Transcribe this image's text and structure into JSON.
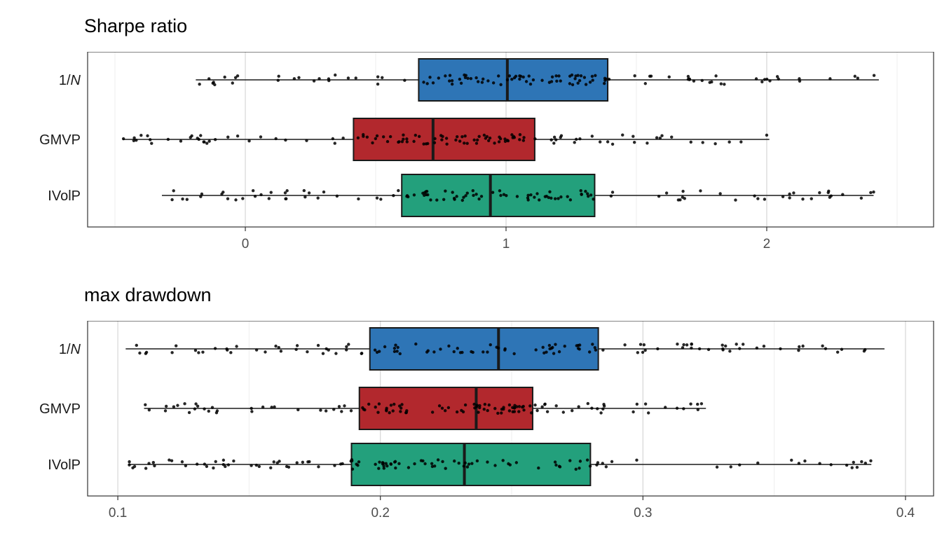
{
  "figure": {
    "background": "#ffffff"
  },
  "style": {
    "box_border": "#1a1a1a",
    "whisker_color": "#1a1a1a",
    "point_color": "#000000",
    "grid_major": "#d9d9d9",
    "grid_minor": "#eeeeee",
    "panel_border": "#333333",
    "axis_text_color": "#4d4d4d",
    "category_text_color": "#1a1a1a",
    "title_color": "#000000"
  },
  "chart_data": [
    {
      "type": "boxplot-horizontal",
      "title": "Sharpe ratio",
      "categories": [
        {
          "plain": "1/",
          "italic": "N"
        },
        {
          "plain": "GMVP",
          "italic": ""
        },
        {
          "plain": "IVolP",
          "italic": ""
        }
      ],
      "xlim": [
        -0.605,
        2.64
      ],
      "x_major_ticks": [
        {
          "value": 0,
          "label": "0"
        },
        {
          "value": 1,
          "label": "1"
        },
        {
          "value": 2,
          "label": "2"
        }
      ],
      "x_minor_ticks": [
        -0.5,
        0.5,
        1.5,
        2.5
      ],
      "grid": true,
      "legend": "none",
      "series": [
        {
          "name": "1/N",
          "color": "#2E75B6",
          "min": -0.19,
          "q1": 0.665,
          "median": 1.005,
          "q3": 1.39,
          "max": 2.43,
          "n_points": 120,
          "seed": 11
        },
        {
          "name": "GMVP",
          "color": "#B2282D",
          "min": -0.47,
          "q1": 0.415,
          "median": 0.72,
          "q3": 1.11,
          "max": 2.01,
          "n_points": 120,
          "seed": 22
        },
        {
          "name": "IVolP",
          "color": "#23A07C",
          "min": -0.32,
          "q1": 0.6,
          "median": 0.94,
          "q3": 1.34,
          "max": 2.41,
          "n_points": 120,
          "seed": 33
        }
      ]
    },
    {
      "type": "boxplot-horizontal",
      "title": "max drawdown",
      "categories": [
        {
          "plain": "1/",
          "italic": "N"
        },
        {
          "plain": "GMVP",
          "italic": ""
        },
        {
          "plain": "IVolP",
          "italic": ""
        }
      ],
      "xlim": [
        0.0885,
        0.4107
      ],
      "x_major_ticks": [
        {
          "value": 0.1,
          "label": "0.1"
        },
        {
          "value": 0.2,
          "label": "0.2"
        },
        {
          "value": 0.3,
          "label": "0.3"
        },
        {
          "value": 0.4,
          "label": "0.4"
        }
      ],
      "x_minor_ticks": [
        0.15,
        0.25,
        0.35
      ],
      "grid": true,
      "legend": "none",
      "series": [
        {
          "name": "1/N",
          "color": "#2E75B6",
          "min": 0.103,
          "q1": 0.196,
          "median": 0.245,
          "q3": 0.283,
          "max": 0.392,
          "n_points": 120,
          "seed": 44
        },
        {
          "name": "GMVP",
          "color": "#B2282D",
          "min": 0.11,
          "q1": 0.192,
          "median": 0.2365,
          "q3": 0.258,
          "max": 0.324,
          "n_points": 120,
          "seed": 55
        },
        {
          "name": "IVolP",
          "color": "#23A07C",
          "min": 0.104,
          "q1": 0.189,
          "median": 0.232,
          "q3": 0.28,
          "max": 0.387,
          "n_points": 120,
          "seed": 66
        }
      ]
    }
  ]
}
